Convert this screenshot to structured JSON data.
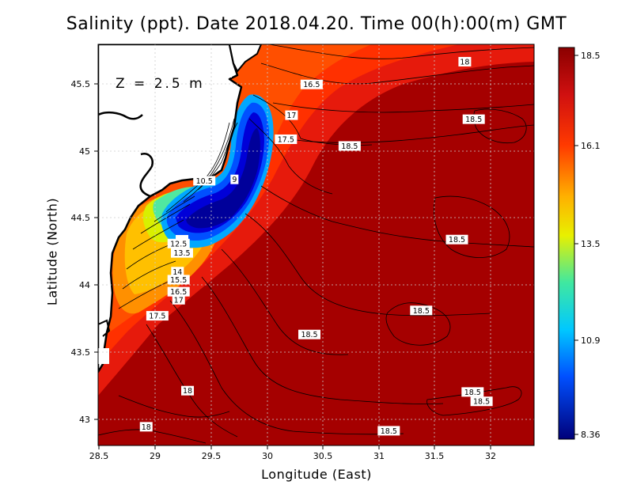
{
  "title": "Salinity (ppt). Date 2018.04.20. Time 00(h):00(m) GMT",
  "depth_label": "Z = 2.5 m",
  "x_axis": {
    "label": "Longitude (East)",
    "ticks": [
      "28.5",
      "29",
      "29.5",
      "30",
      "30.5",
      "31",
      "31.5",
      "32"
    ]
  },
  "y_axis": {
    "label": "Latitude (North)",
    "ticks": [
      "43",
      "43.5",
      "44",
      "44.5",
      "45",
      "45.5"
    ]
  },
  "colorbar": {
    "ticks": [
      "18.5",
      "16.1",
      "13.5",
      "10.9",
      "8.36"
    ],
    "min": 8.36,
    "max": 18.5
  },
  "colors": {
    "high": "#8b0000",
    "mid_high": "#e81e0a",
    "mid": "#ffb300",
    "mid_low": "#40e0a0",
    "low": "#00008b"
  },
  "chart_data": {
    "type": "heatmap",
    "variable": "Salinity (ppt)",
    "date": "2018.04.20",
    "time": "00(h):00(m) GMT",
    "xlim": [
      28.5,
      32.4
    ],
    "ylim": [
      42.8,
      45.8
    ],
    "grid": "dotted",
    "contour_labels": [
      {
        "value": "18",
        "lon": 31.78,
        "lat": 45.67
      },
      {
        "value": "16.5",
        "lon": 30.41,
        "lat": 45.5
      },
      {
        "value": "17",
        "lon": 30.23,
        "lat": 45.27
      },
      {
        "value": "18.5",
        "lon": 31.86,
        "lat": 45.24
      },
      {
        "value": "17.5",
        "lon": 30.18,
        "lat": 45.09
      },
      {
        "value": "18.5",
        "lon": 30.75,
        "lat": 45.04
      },
      {
        "value": "10.5",
        "lon": 29.45,
        "lat": 44.78
      },
      {
        "value": "9",
        "lon": 29.72,
        "lat": 44.79
      },
      {
        "value": "18.5",
        "lon": 31.71,
        "lat": 44.34
      },
      {
        "value": "12.5",
        "lon": 29.22,
        "lat": 44.31
      },
      {
        "value": "13.5",
        "lon": 29.25,
        "lat": 44.24
      },
      {
        "value": "14",
        "lon": 29.21,
        "lat": 44.1
      },
      {
        "value": "15.5",
        "lon": 29.22,
        "lat": 44.04
      },
      {
        "value": "16.5",
        "lon": 29.22,
        "lat": 43.95
      },
      {
        "value": "17",
        "lon": 29.22,
        "lat": 43.89
      },
      {
        "value": "17.5",
        "lon": 29.03,
        "lat": 43.77
      },
      {
        "value": "18.5",
        "lon": 31.39,
        "lat": 43.81
      },
      {
        "value": "18.5",
        "lon": 30.39,
        "lat": 43.63
      },
      {
        "value": "18",
        "lon": 29.3,
        "lat": 43.21
      },
      {
        "value": "18.5",
        "lon": 31.85,
        "lat": 43.2
      },
      {
        "value": "18.5",
        "lon": 31.93,
        "lat": 43.13
      },
      {
        "value": "18",
        "lon": 28.93,
        "lat": 42.94
      },
      {
        "value": "18.5",
        "lon": 31.1,
        "lat": 42.91
      }
    ]
  }
}
